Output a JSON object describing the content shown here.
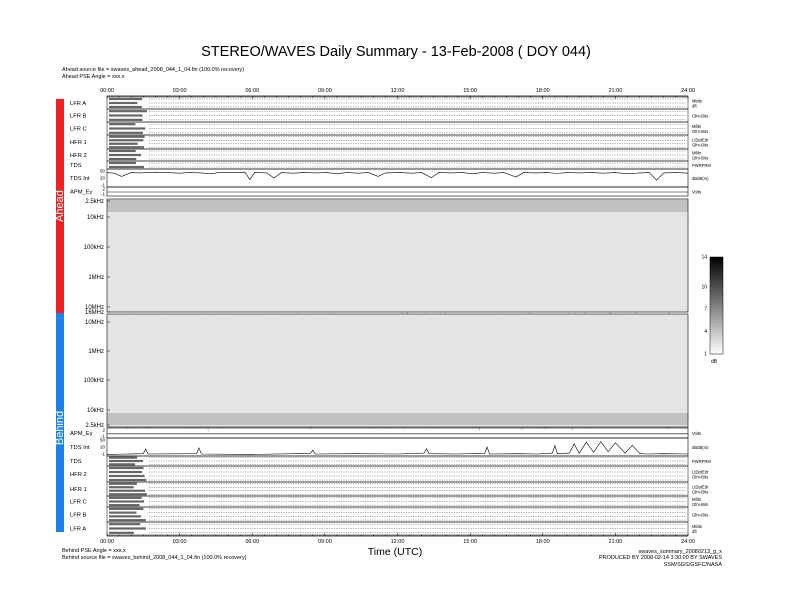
{
  "title": "STEREO/WAVES Daily Summary - 13-Feb-2008 ( DOY 044)",
  "ahead_info": {
    "source": "Ahead source file = swaves_ahead_2008_044_1_04.fin (100.0% recovery)",
    "angle": "Ahead PSE Angle = xxx.x"
  },
  "behind_info": {
    "angle": "Behind PSE Angle = xxx.x",
    "source": "Behind source file = swaves_behind_2008_044_1_04.fin (100.0% recovery)"
  },
  "side_labels": {
    "ahead": "Ahead",
    "behind": "Behind"
  },
  "colors": {
    "ahead": "#ee2222",
    "behind": "#1a82e8"
  },
  "footer": {
    "xlabel": "Time (UTC)",
    "file": "swaves_summary_20080213_g_x",
    "produced": "PRODUCED BY 2008-02-14 3:30:00 BY SWAVES SSM/SGS/GSFC/NASA"
  },
  "time_ticks": [
    "00:00",
    "03:00",
    "06:00",
    "09:00",
    "12:00",
    "15:00",
    "18:00",
    "21:00",
    "24:00"
  ],
  "ahead_rows": [
    {
      "label": "LFR A",
      "right": [
        "Mbits",
        "dft"
      ]
    },
    {
      "label": "LFR B",
      "right": [
        "Gfm-Bits",
        ""
      ]
    },
    {
      "label": "LFR C",
      "right": [
        "Mfiltr",
        "Gfm-Bits"
      ]
    },
    {
      "label": "HFR 1",
      "right": [
        "LtDptEdr",
        "Gfm-Bits"
      ]
    },
    {
      "label": "HFR 2",
      "right": [
        "Mfiltr",
        "Gfm-Bits"
      ]
    },
    {
      "label": "TDS",
      "right": [
        "PWRFRM",
        ""
      ]
    },
    {
      "label": "TDS Int",
      "right": [
        "dBdB(m)",
        ""
      ]
    },
    {
      "label": "APM_Ey",
      "right": [
        "Volts",
        ""
      ]
    }
  ],
  "behind_rows": [
    {
      "label": "APM_Ey",
      "right": [
        "Volts",
        ""
      ]
    },
    {
      "label": "TDS Int",
      "right": [
        "dBdB(m)",
        ""
      ]
    },
    {
      "label": "TDS",
      "right": [
        "PWRFRM",
        ""
      ]
    },
    {
      "label": "HFR 2",
      "right": [
        "LtDptEdr",
        "Gfm-Bits"
      ]
    },
    {
      "label": "HFR 1",
      "right": [
        "LtDptEdr",
        "Gfm-Bits"
      ]
    },
    {
      "label": "LFR C",
      "right": [
        "Mfiltr",
        "Gfm-Bits"
      ]
    },
    {
      "label": "LFR B",
      "right": [
        "Gfm-Bits",
        ""
      ]
    },
    {
      "label": "LFR A",
      "right": [
        "Mbits",
        "dft"
      ]
    }
  ],
  "tds_int_ticks": [
    "50",
    "20",
    "-1"
  ],
  "apm_ticks": [
    "2",
    "0",
    "-1"
  ],
  "chart_data": {
    "type": "heatmap",
    "x_range_hours": [
      0,
      24
    ],
    "ahead_freq_ticks": [
      "2.5kHz",
      "10kHz",
      "100kHz",
      "1MHz",
      "10MHz",
      "16MHz"
    ],
    "behind_freq_ticks": [
      "10MHz",
      "1MHz",
      "100kHz",
      "10kHz",
      "2.5kHz"
    ],
    "colorbar": {
      "ticks": [
        "14",
        "10",
        "7",
        "4",
        "1"
      ],
      "range": [
        1,
        14
      ],
      "unit": "dB"
    },
    "ahead_burst_hours": [
      0.9,
      1.6,
      2.4,
      3.1,
      3.6,
      4.3,
      4.8,
      5.5,
      6.1,
      6.4,
      7.8,
      8.7,
      9.6,
      10.4,
      11.3,
      12.1,
      12.9,
      13.8,
      14.6,
      15.4,
      16.2,
      17.1,
      17.9,
      18.3,
      18.8,
      19.7,
      20.4,
      21.2,
      21.9,
      22.8,
      23.6
    ],
    "behind_burst_hours": [
      1.0,
      2.4,
      3.6,
      5.0,
      6.0,
      7.1,
      8.4,
      9.6,
      10.3,
      11.8,
      13.1,
      14.4,
      15.7,
      17.2,
      17.9,
      18.4,
      19.1,
      19.6,
      20.3,
      21.4,
      22.3,
      23.0
    ],
    "tds_int_ahead": [
      [
        0.0,
        42
      ],
      [
        0.3,
        40
      ],
      [
        0.6,
        30
      ],
      [
        1.0,
        42
      ],
      [
        1.4,
        41
      ],
      [
        2.0,
        43
      ],
      [
        2.5,
        42
      ],
      [
        3.0,
        40
      ],
      [
        3.4,
        42
      ],
      [
        3.9,
        41
      ],
      [
        4.3,
        38
      ],
      [
        4.6,
        42
      ],
      [
        5.1,
        42
      ],
      [
        5.7,
        43
      ],
      [
        5.9,
        20
      ],
      [
        6.1,
        42
      ],
      [
        6.6,
        41
      ],
      [
        6.9,
        25
      ],
      [
        7.2,
        42
      ],
      [
        7.7,
        40
      ],
      [
        8.1,
        42
      ],
      [
        8.6,
        41
      ],
      [
        9.1,
        42
      ],
      [
        9.5,
        38
      ],
      [
        9.9,
        42
      ],
      [
        10.4,
        40
      ],
      [
        10.8,
        42
      ],
      [
        11.2,
        30
      ],
      [
        11.5,
        41
      ],
      [
        12.1,
        42
      ],
      [
        12.6,
        40
      ],
      [
        13.0,
        42
      ],
      [
        13.4,
        26
      ],
      [
        13.7,
        42
      ],
      [
        14.2,
        41
      ],
      [
        14.7,
        42
      ],
      [
        15.1,
        38
      ],
      [
        15.5,
        42
      ],
      [
        16.0,
        40
      ],
      [
        16.4,
        42
      ],
      [
        16.9,
        28
      ],
      [
        17.2,
        42
      ],
      [
        17.7,
        41
      ],
      [
        18.2,
        42
      ],
      [
        18.6,
        39
      ],
      [
        19.0,
        42
      ],
      [
        19.5,
        41
      ],
      [
        20.0,
        42
      ],
      [
        20.5,
        40
      ],
      [
        21.0,
        42
      ],
      [
        21.5,
        38
      ],
      [
        22.0,
        41
      ],
      [
        22.4,
        42
      ],
      [
        22.7,
        18
      ],
      [
        23.0,
        41
      ],
      [
        23.5,
        42
      ],
      [
        24.0,
        40
      ]
    ],
    "tds_int_behind": [
      [
        0.0,
        2
      ],
      [
        1.5,
        4
      ],
      [
        1.6,
        18
      ],
      [
        1.7,
        3
      ],
      [
        3.7,
        4
      ],
      [
        3.8,
        22
      ],
      [
        3.9,
        3
      ],
      [
        6.0,
        2
      ],
      [
        8.4,
        5
      ],
      [
        8.5,
        15
      ],
      [
        8.6,
        3
      ],
      [
        10.3,
        4
      ],
      [
        12.0,
        3
      ],
      [
        13.1,
        6
      ],
      [
        13.2,
        20
      ],
      [
        13.3,
        4
      ],
      [
        14.4,
        3
      ],
      [
        15.6,
        5
      ],
      [
        15.7,
        25
      ],
      [
        15.8,
        3
      ],
      [
        17.0,
        4
      ],
      [
        17.8,
        3
      ],
      [
        18.4,
        6
      ],
      [
        18.5,
        30
      ],
      [
        18.6,
        4
      ],
      [
        19.1,
        6
      ],
      [
        19.3,
        35
      ],
      [
        19.5,
        5
      ],
      [
        19.8,
        40
      ],
      [
        20.1,
        8
      ],
      [
        20.4,
        42
      ],
      [
        20.7,
        10
      ],
      [
        21.0,
        38
      ],
      [
        21.4,
        6
      ],
      [
        21.7,
        30
      ],
      [
        22.0,
        5
      ],
      [
        22.3,
        3
      ],
      [
        23.0,
        4
      ],
      [
        24.0,
        3
      ]
    ],
    "apm_ahead": [
      [
        0,
        0.3
      ],
      [
        24,
        0.3
      ]
    ],
    "apm_behind": [
      [
        0,
        0.2
      ],
      [
        24,
        0.2
      ]
    ]
  }
}
